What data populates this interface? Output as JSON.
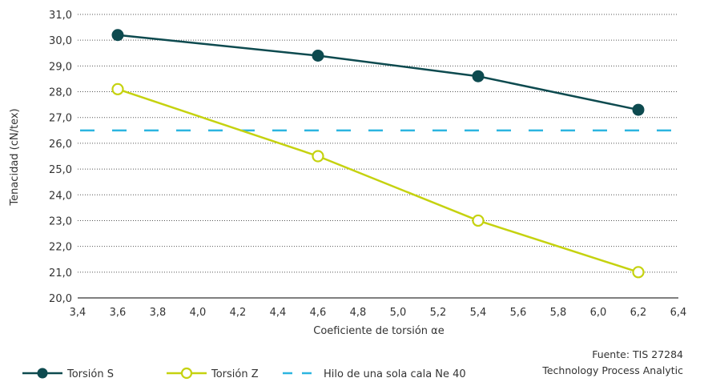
{
  "chart_data": {
    "type": "line",
    "xlabel": "Coeficiente de torsión αe",
    "ylabel": "Tenacidad (cN/tex)",
    "xlim": [
      3.4,
      6.4
    ],
    "ylim": [
      20.0,
      31.0
    ],
    "x_ticks": [
      "3,4",
      "3,6",
      "3,8",
      "4,0",
      "4,2",
      "4,4",
      "4,6",
      "4,8",
      "5,0",
      "5,2",
      "5,4",
      "5,6",
      "5,8",
      "6,0",
      "6,2",
      "6,4"
    ],
    "y_ticks": [
      "20,0",
      "21,0",
      "22,0",
      "23,0",
      "24,0",
      "25,0",
      "26,0",
      "27,0",
      "28,0",
      "29,0",
      "30,0",
      "31,0"
    ],
    "grid": "horizontal dotted",
    "legend_position": "bottom-left",
    "series": [
      {
        "name": "Torsión S",
        "color": "#0d4a4f",
        "marker": "filled-circle",
        "x": [
          3.6,
          4.6,
          5.4,
          6.2
        ],
        "values": [
          30.2,
          29.4,
          28.6,
          27.3
        ]
      },
      {
        "name": "Torsión Z",
        "color": "#c5d20f",
        "marker": "hollow-circle",
        "x": [
          3.6,
          4.6,
          5.4,
          6.2
        ],
        "values": [
          28.1,
          25.5,
          23.0,
          21.0
        ]
      }
    ],
    "reference_line": {
      "name": "Hilo de una sola cala Ne 40",
      "color": "#2cb5e0",
      "style": "dashed",
      "value": 26.5
    },
    "source": {
      "line1": "Fuente: TIS 27284",
      "line2": "Technology Process Analytic"
    }
  }
}
